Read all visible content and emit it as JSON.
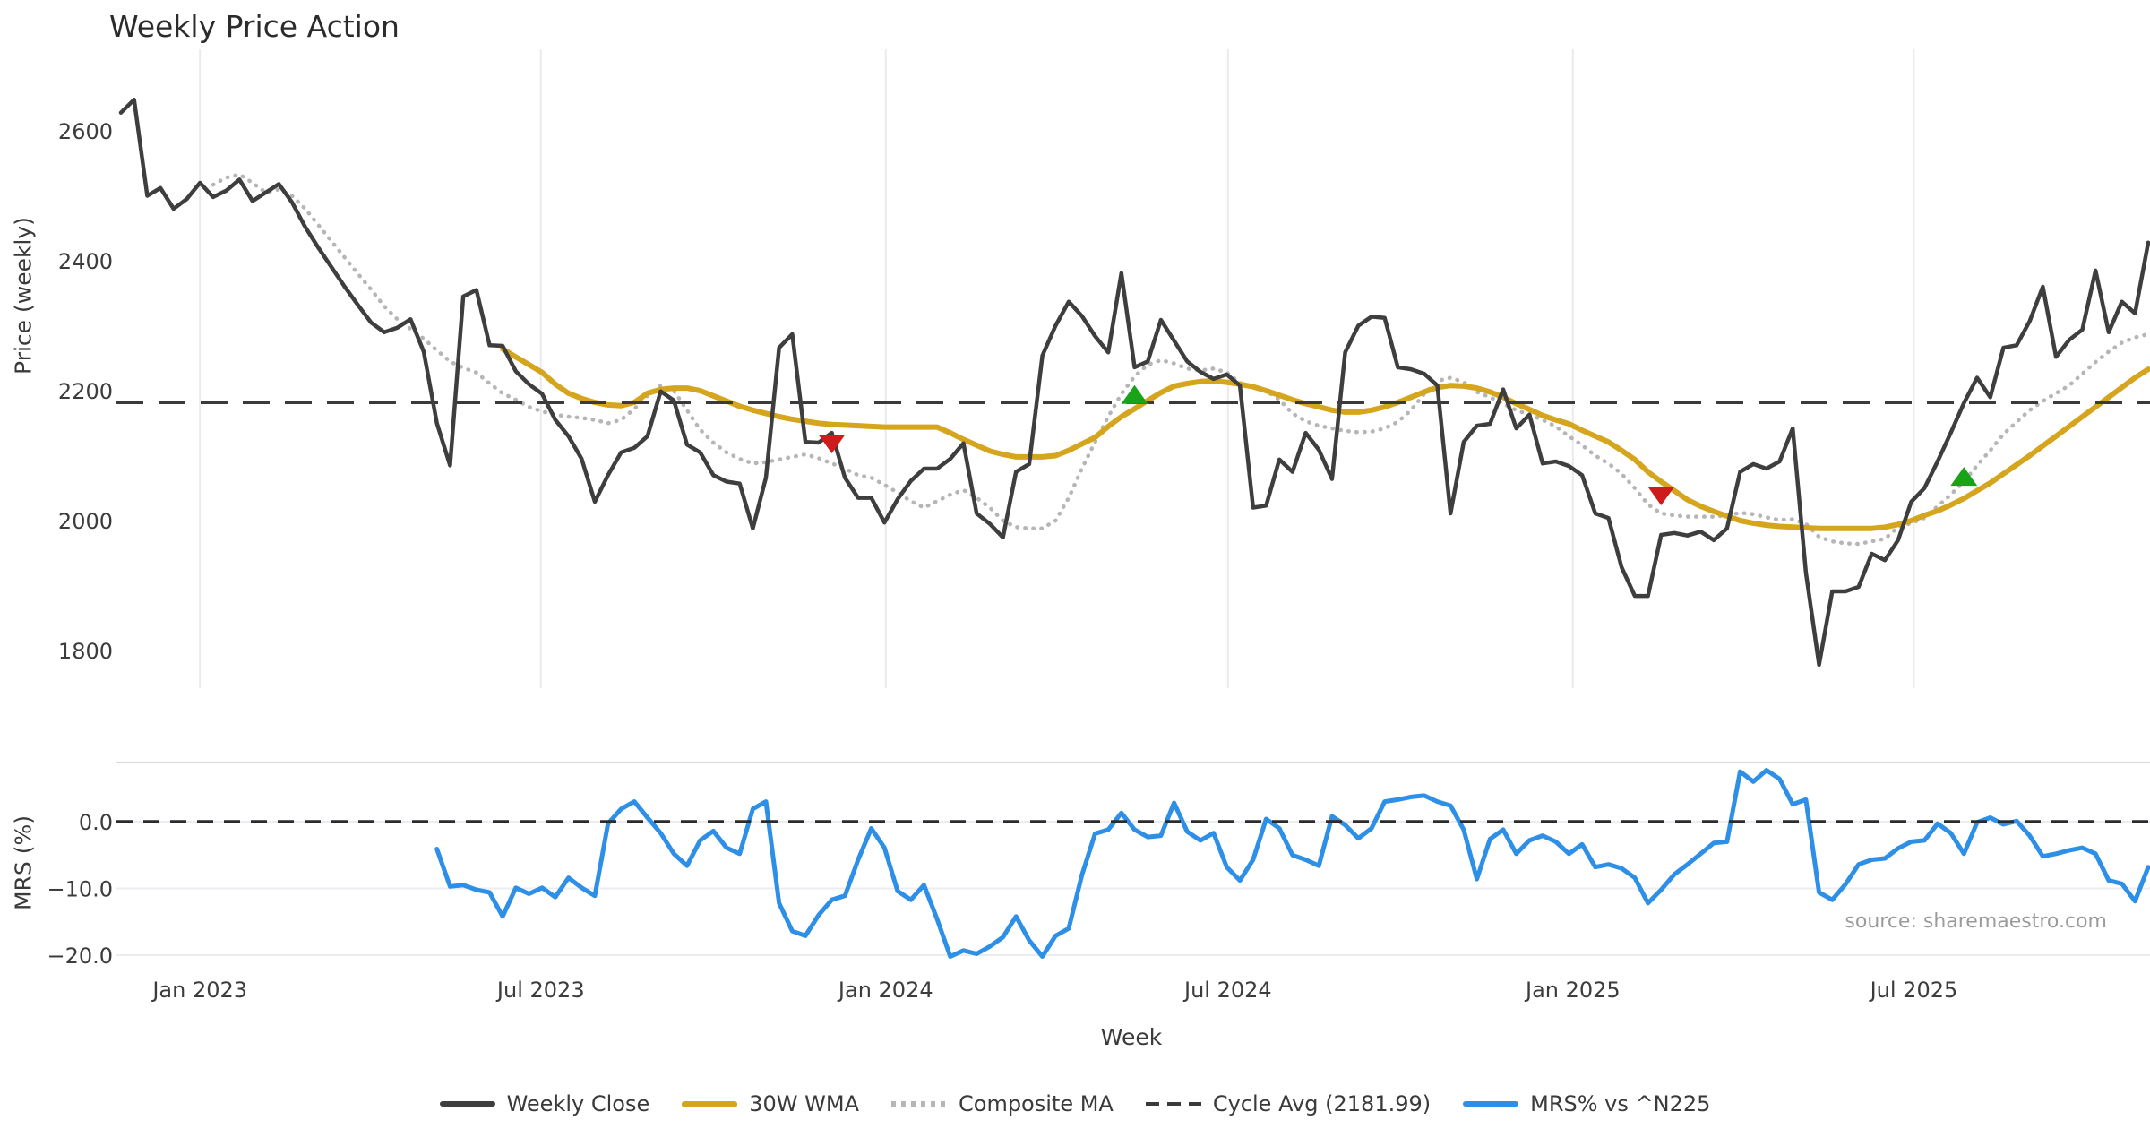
{
  "chart_data": {
    "type": "line",
    "title": "Weekly Price Action",
    "xlabel": "Week",
    "source": "source: sharemaestro.com",
    "x_unit": "weekly, Nov 2022 - Oct 2025",
    "weeks_total": 154,
    "x_ticks": [
      {
        "label": "Jan 2023",
        "week": 6.0
      },
      {
        "label": "Jul 2023",
        "week": 31.9
      },
      {
        "label": "Jan 2024",
        "week": 58.1
      },
      {
        "label": "Jul 2024",
        "week": 84.1
      },
      {
        "label": "Jan 2025",
        "week": 110.3
      },
      {
        "label": "Jul 2025",
        "week": 136.2
      }
    ],
    "panels": [
      {
        "id": "price",
        "ylabel": "Price (weekly)",
        "ylim": [
          1742,
          2725
        ],
        "grid": "vertical",
        "yticks": [
          {
            "v": 2600,
            "label": "2600"
          },
          {
            "v": 2400,
            "label": "2400"
          },
          {
            "v": 2200,
            "label": "2200"
          },
          {
            "v": 2000,
            "label": "2000"
          },
          {
            "v": 1800,
            "label": "1800"
          }
        ]
      },
      {
        "id": "mrs",
        "ylabel": "MRS (%)",
        "ylim": [
          -21.9,
          8.9
        ],
        "grid": "horizontal",
        "yticks": [
          {
            "v": 0,
            "label": "0.0"
          },
          {
            "v": -10,
            "label": "−10.0"
          },
          {
            "v": -20,
            "label": "−20.0"
          }
        ]
      }
    ],
    "cycle_avg_value": 2181.99,
    "series": [
      {
        "id": "weekly_close",
        "name": "Weekly Close",
        "panel": "price",
        "color": "#3e3e3e",
        "style": "solid",
        "width": 4.5,
        "start_week": 0,
        "values": [
          2628,
          2648,
          2500,
          2512,
          2480,
          2495,
          2520,
          2498,
          2508,
          2525,
          2492,
          2505,
          2518,
          2490,
          2452,
          2420,
          2390,
          2360,
          2332,
          2305,
          2290,
          2297,
          2310,
          2260,
          2150,
          2085,
          2345,
          2355,
          2270,
          2269,
          2230,
          2210,
          2195,
          2155,
          2130,
          2095,
          2029,
          2070,
          2105,
          2112,
          2130,
          2199,
          2185,
          2117,
          2105,
          2070,
          2060,
          2057,
          1988,
          2066,
          2266,
          2287,
          2121,
          2120,
          2135,
          2066,
          2035,
          2035,
          1997,
          2033,
          2061,
          2080,
          2080,
          2095,
          2119,
          2011,
          1995,
          1974,
          2075,
          2087,
          2254,
          2300,
          2337,
          2315,
          2284,
          2259,
          2381,
          2236,
          2245,
          2309,
          2277,
          2245,
          2229,
          2218,
          2225,
          2208,
          2020,
          2023,
          2094,
          2075,
          2135,
          2109,
          2064,
          2259,
          2300,
          2314,
          2312,
          2236,
          2233,
          2226,
          2208,
          2011,
          2121,
          2146,
          2149,
          2202,
          2142,
          2163,
          2088,
          2091,
          2084,
          2070,
          2011,
          2004,
          1928,
          1884,
          1884,
          1978,
          1981,
          1977,
          1983,
          1970,
          1988,
          2075,
          2087,
          2080,
          2091,
          2142,
          1920,
          1778,
          1891,
          1891,
          1898,
          1949,
          1939,
          1970,
          2029,
          2050,
          2091,
          2135,
          2181,
          2220,
          2190,
          2266,
          2270,
          2307,
          2360,
          2252,
          2278,
          2294,
          2385,
          2290,
          2337,
          2319,
          2428
        ]
      },
      {
        "id": "wma30",
        "name": "30W WMA",
        "panel": "price",
        "color": "#d6a51e",
        "style": "solid",
        "width": 6,
        "start_week": 29,
        "values": [
          2264,
          2252,
          2240,
          2228,
          2210,
          2196,
          2188,
          2182,
          2178,
          2177,
          2182,
          2196,
          2202,
          2204,
          2204,
          2200,
          2192,
          2184,
          2176,
          2170,
          2165,
          2160,
          2156,
          2153,
          2150,
          2148,
          2147,
          2146,
          2145,
          2144,
          2144,
          2144,
          2144,
          2144,
          2135,
          2125,
          2116,
          2107,
          2102,
          2098,
          2098,
          2098,
          2100,
          2108,
          2118,
          2128,
          2145,
          2160,
          2172,
          2185,
          2197,
          2207,
          2211,
          2214,
          2215,
          2213,
          2210,
          2206,
          2200,
          2193,
          2186,
          2180,
          2175,
          2170,
          2167,
          2167,
          2170,
          2175,
          2182,
          2190,
          2198,
          2205,
          2208,
          2207,
          2204,
          2198,
          2190,
          2180,
          2171,
          2162,
          2155,
          2149,
          2139,
          2130,
          2121,
          2108,
          2094,
          2075,
          2060,
          2046,
          2032,
          2022,
          2014,
          2007,
          2000,
          1996,
          1993,
          1991,
          1990,
          1989,
          1988,
          1988,
          1988,
          1988,
          1988,
          1990,
          1994,
          2000,
          2008,
          2015,
          2024,
          2034,
          2046,
          2058,
          2072,
          2086,
          2100,
          2115,
          2130,
          2145,
          2160,
          2175,
          2190,
          2205,
          2220,
          2233
        ]
      },
      {
        "id": "composite",
        "name": "Composite MA",
        "panel": "price",
        "color": "#b6b6b6",
        "style": "dotted",
        "width": 4.5,
        "start_week": 7,
        "values": [
          2517,
          2528,
          2533,
          2520,
          2505,
          2510,
          2500,
          2480,
          2455,
          2430,
          2405,
          2380,
          2356,
          2330,
          2310,
          2295,
          2280,
          2262,
          2245,
          2235,
          2228,
          2211,
          2196,
          2186,
          2175,
          2168,
          2163,
          2160,
          2158,
          2155,
          2150,
          2155,
          2172,
          2192,
          2208,
          2200,
          2170,
          2140,
          2120,
          2105,
          2095,
          2088,
          2090,
          2094,
          2098,
          2102,
          2096,
          2088,
          2080,
          2070,
          2066,
          2055,
          2043,
          2030,
          2020,
          2030,
          2040,
          2047,
          2035,
          2020,
          2000,
          1990,
          1988,
          1988,
          2000,
          2035,
          2080,
          2121,
          2160,
          2195,
          2222,
          2240,
          2247,
          2242,
          2234,
          2231,
          2234,
          2228,
          2212,
          2205,
          2200,
          2186,
          2165,
          2153,
          2146,
          2142,
          2138,
          2136,
          2137,
          2142,
          2152,
          2170,
          2195,
          2215,
          2220,
          2213,
          2198,
          2190,
          2180,
          2170,
          2163,
          2155,
          2145,
          2130,
          2116,
          2100,
          2088,
          2072,
          2050,
          2025,
          2011,
          2008,
          2006,
          2006,
          2006,
          2008,
          2012,
          2010,
          2005,
          2001,
          2002,
          1995,
          1975,
          1968,
          1965,
          1964,
          1968,
          1972,
          1990,
          1996,
          2004,
          2022,
          2040,
          2060,
          2085,
          2108,
          2133,
          2152,
          2170,
          2184,
          2196,
          2208,
          2226,
          2244,
          2260,
          2274,
          2282,
          2287
        ]
      },
      {
        "id": "cycle_avg",
        "name": "Cycle Avg (2181.99)",
        "panel": "price",
        "color": "#3a3a3a",
        "style": "dashed",
        "width": 4,
        "const": 2181.99
      },
      {
        "id": "mrs",
        "name": "MRS% vs ^N225",
        "panel": "mrs",
        "color": "#2e8fe6",
        "style": "solid",
        "width": 5,
        "start_week": 24,
        "values": [
          -4.1,
          -9.7,
          -9.5,
          -10.2,
          -10.6,
          -14.2,
          -9.9,
          -10.8,
          -9.9,
          -11.3,
          -8.4,
          -9.9,
          -11.1,
          -0.3,
          1.9,
          3.0,
          0.6,
          -1.7,
          -4.8,
          -6.6,
          -2.8,
          -1.4,
          -3.9,
          -4.8,
          1.9,
          3.0,
          -12.2,
          -16.4,
          -17.1,
          -14.0,
          -11.7,
          -11.1,
          -5.7,
          -1.0,
          -3.9,
          -10.4,
          -11.7,
          -9.5,
          -14.6,
          -20.2,
          -19.3,
          -19.8,
          -18.7,
          -17.3,
          -14.2,
          -17.8,
          -20.2,
          -17.1,
          -16.0,
          -8.0,
          -1.8,
          -1.2,
          1.3,
          -1.2,
          -2.3,
          -2.1,
          2.8,
          -1.5,
          -2.8,
          -1.7,
          -6.8,
          -8.8,
          -5.7,
          0.4,
          -1.0,
          -5.0,
          -5.7,
          -6.6,
          0.8,
          -0.5,
          -2.5,
          -1.0,
          3.0,
          3.3,
          3.7,
          3.9,
          3.0,
          2.4,
          -1.2,
          -8.6,
          -2.6,
          -1.2,
          -4.8,
          -2.8,
          -2.1,
          -3.0,
          -4.8,
          -3.4,
          -6.8,
          -6.4,
          -7.0,
          -8.4,
          -12.2,
          -10.2,
          -7.9,
          -6.4,
          -4.8,
          -3.2,
          -3.0,
          7.5,
          6.0,
          7.7,
          6.4,
          2.6,
          3.3,
          -10.6,
          -11.7,
          -9.4,
          -6.4,
          -5.7,
          -5.5,
          -4.0,
          -3.0,
          -2.8,
          -0.3,
          -1.7,
          -4.8,
          -0.1,
          0.6,
          -0.4,
          0.1,
          -2.1,
          -5.2,
          -4.8,
          -4.3,
          -3.9,
          -4.8,
          -8.8,
          -9.3,
          -11.9,
          -6.8
        ]
      }
    ],
    "zero_line": {
      "panel": "mrs",
      "value": 0.0,
      "style": "dashed",
      "color": "#2b2b2b"
    },
    "markers": {
      "buy": {
        "shape": "triangle-up",
        "color": "#18a318",
        "points": [
          {
            "week": 77,
            "price": 2192
          },
          {
            "week": 140,
            "price": 2066
          }
        ]
      },
      "sell": {
        "shape": "triangle-down",
        "color": "#ce1b1b",
        "points": [
          {
            "week": 54,
            "price": 2120
          },
          {
            "week": 117,
            "price": 2040
          }
        ]
      }
    },
    "layout_hints": {
      "grid_color": "#ebebee",
      "spine_color": "#d9d9d9",
      "background": "#ffffff",
      "legend_position": "bottom-center"
    }
  }
}
